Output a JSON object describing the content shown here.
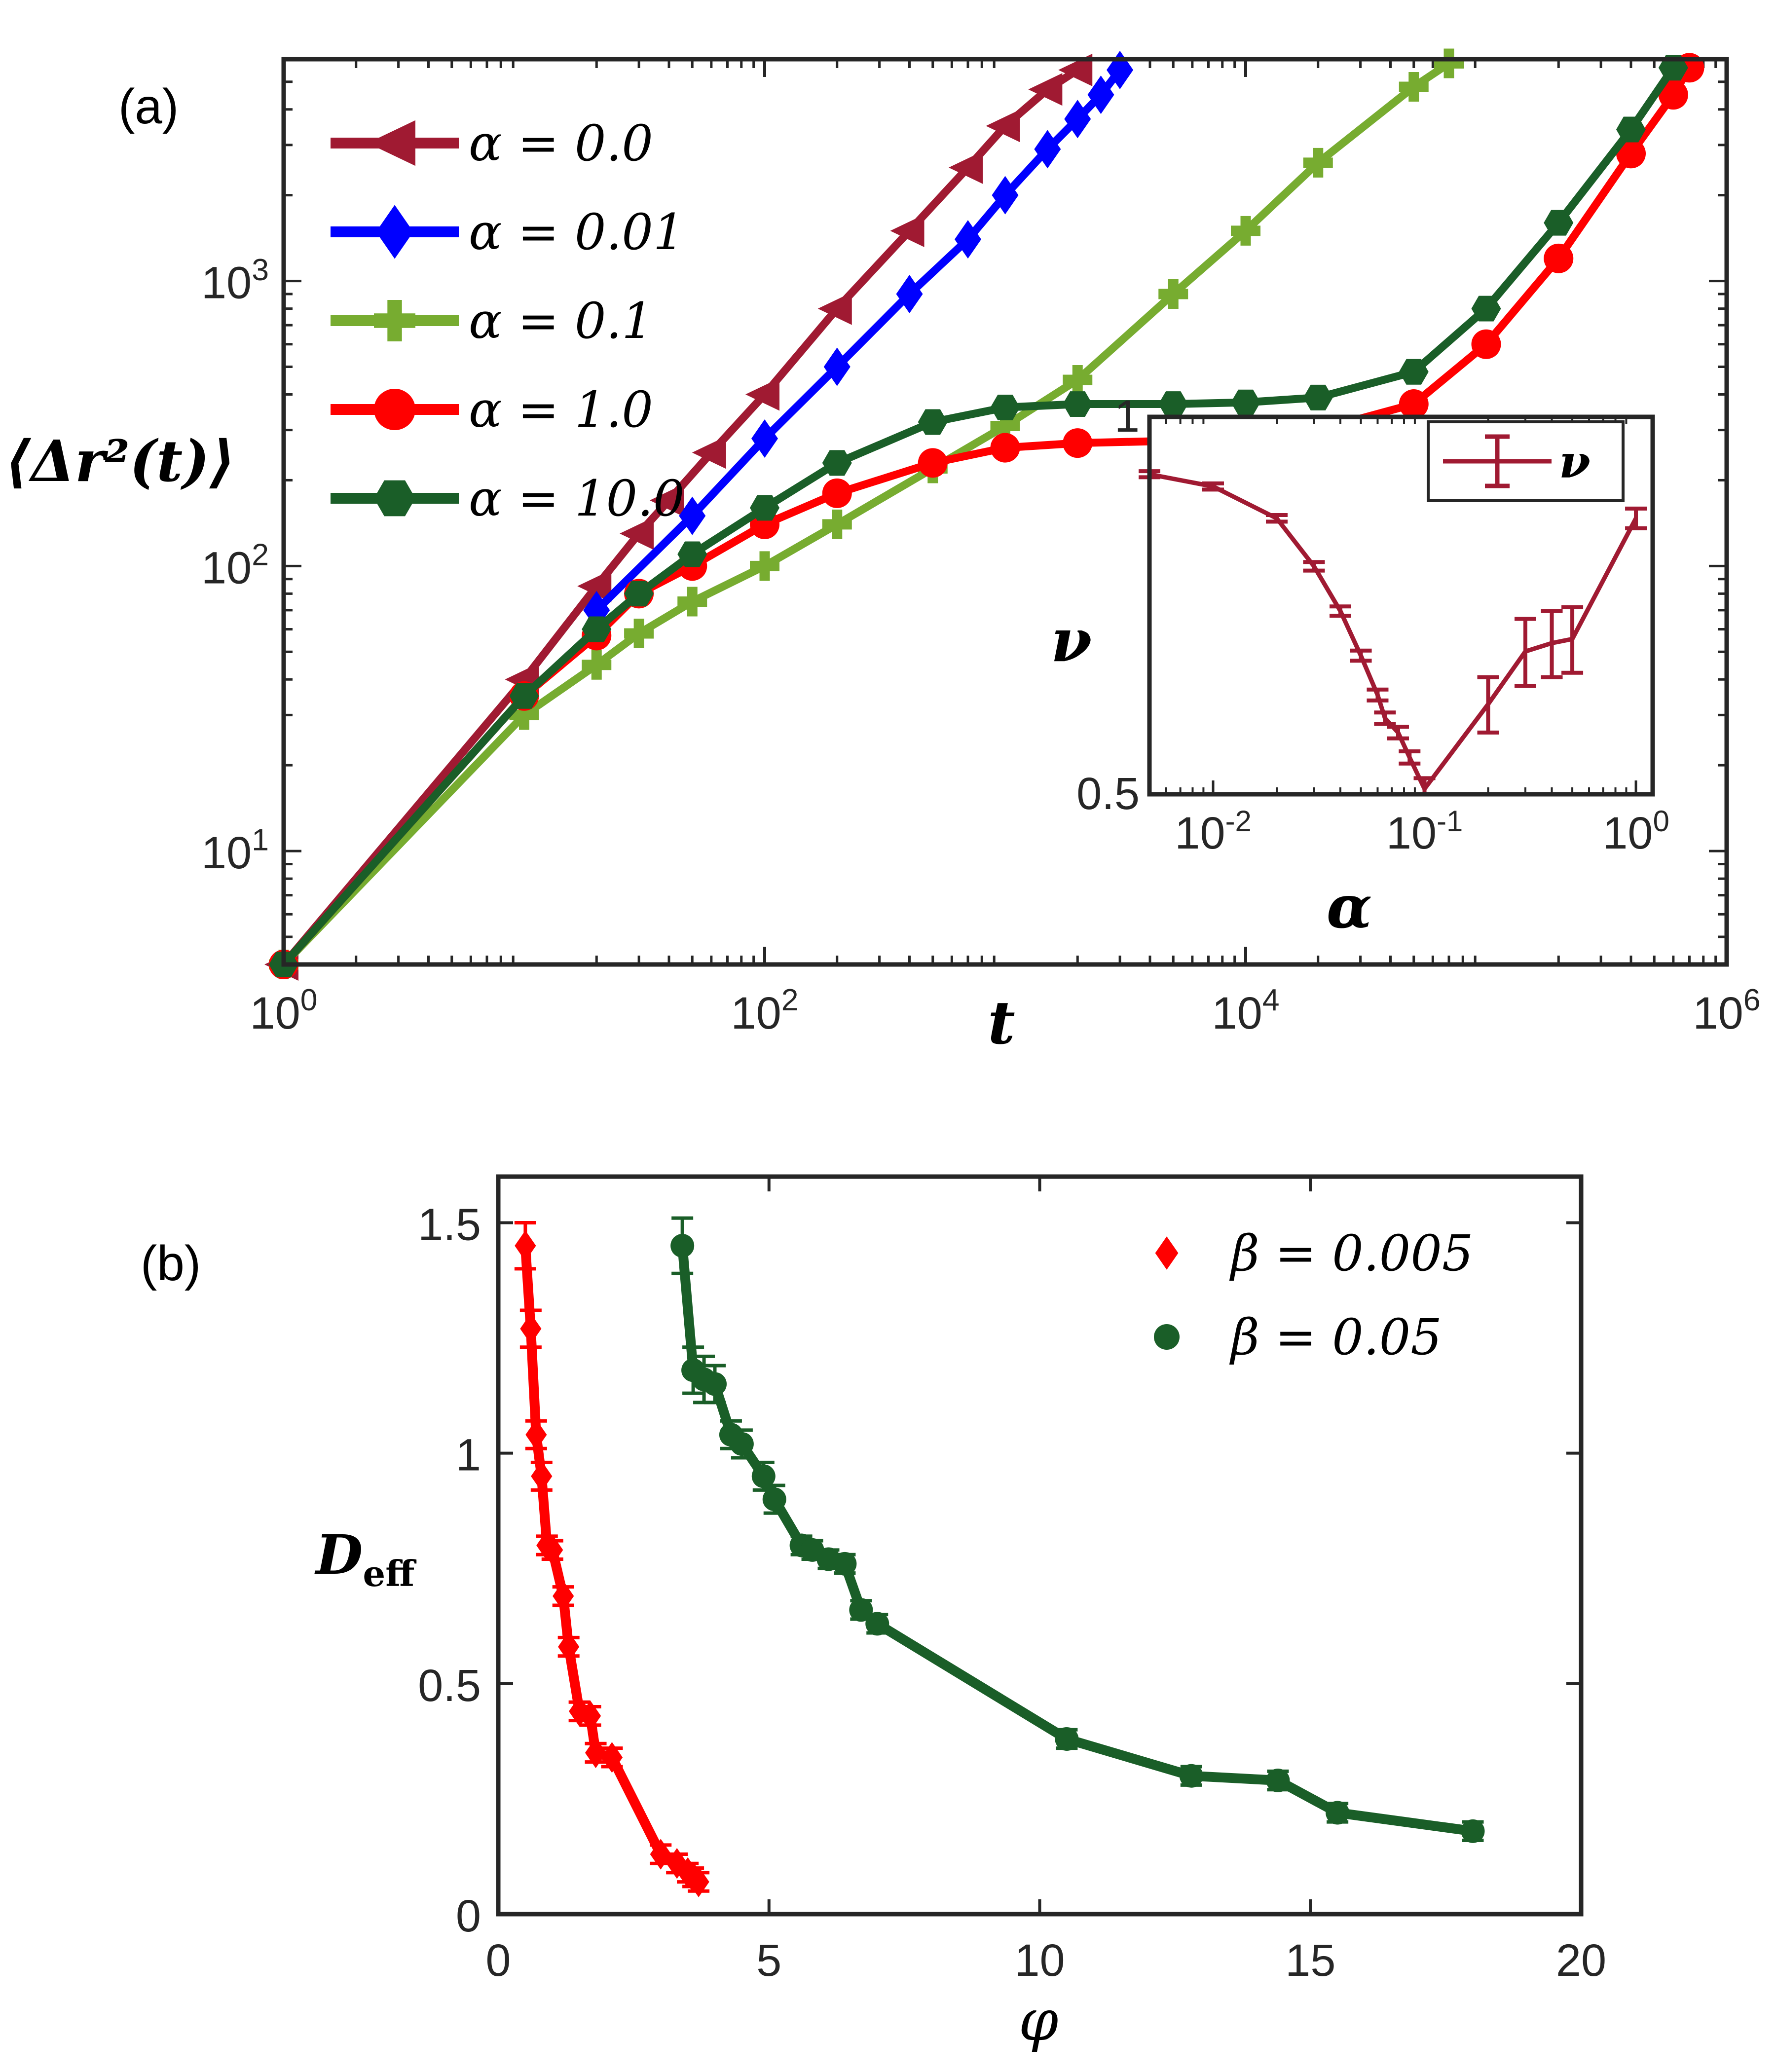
{
  "panel_labels": {
    "a": "(a)",
    "b": "(b)"
  },
  "chart_data": [
    {
      "id": "main",
      "type": "line",
      "xscale": "log",
      "yscale": "log",
      "xlim": [
        1,
        1000000
      ],
      "ylim": [
        4,
        6000
      ],
      "xlabel": "t",
      "ylabel": "⟨Δr²(t)⟩",
      "x_ticks": [
        {
          "v": 1,
          "b": "10",
          "e": "0"
        },
        {
          "v": 100,
          "b": "10",
          "e": "2"
        },
        {
          "v": 10000,
          "b": "10",
          "e": "4"
        },
        {
          "v": 1000000,
          "b": "10",
          "e": "6"
        }
      ],
      "y_ticks": [
        {
          "v": 10,
          "b": "10",
          "e": "1"
        },
        {
          "v": 100,
          "b": "10",
          "e": "2"
        },
        {
          "v": 1000,
          "b": "10",
          "e": "3"
        }
      ],
      "legend": {
        "location": "top-left"
      },
      "series": [
        {
          "name": "α = 0.0",
          "color": "#a01a32",
          "marker": "triangle-left",
          "x": [
            1,
            10,
            20,
            30,
            40,
            60,
            100,
            200,
            400,
            700,
            1000,
            1500,
            2000
          ],
          "y": [
            4,
            40,
            85,
            130,
            170,
            250,
            400,
            800,
            1500,
            2500,
            3500,
            4700,
            5500
          ]
        },
        {
          "name": "α = 0.01",
          "color": "#0000ff",
          "marker": "diamond",
          "x": [
            20,
            50,
            100,
            200,
            400,
            700,
            1000,
            1500,
            2000,
            2500,
            3000
          ],
          "y": [
            70,
            150,
            280,
            500,
            900,
            1400,
            2000,
            2900,
            3700,
            4500,
            5500
          ]
        },
        {
          "name": "α = 0.1",
          "color": "#77ac30",
          "marker": "plus",
          "x": [
            1,
            10,
            20,
            30,
            50,
            100,
            200,
            500,
            1000,
            2000,
            5000,
            10000,
            20000,
            50000,
            70000
          ],
          "y": [
            4,
            30,
            45,
            58,
            75,
            100,
            140,
            220,
            310,
            450,
            900,
            1500,
            2600,
            4800,
            5800
          ]
        },
        {
          "name": "α = 1.0",
          "color": "#ff0000",
          "marker": "circle",
          "x": [
            1,
            10,
            20,
            30,
            50,
            100,
            200,
            500,
            1000,
            2000,
            5000,
            10000,
            20000,
            50000,
            100000,
            200000,
            400000,
            600000,
            700000
          ],
          "y": [
            4,
            35,
            57,
            80,
            100,
            140,
            180,
            230,
            260,
            270,
            275,
            285,
            300,
            370,
            600,
            1200,
            2800,
            4500,
            5600
          ]
        },
        {
          "name": "α = 10.0",
          "color": "#1a5e28",
          "marker": "hexagon",
          "x": [
            1,
            10,
            20,
            30,
            50,
            100,
            200,
            500,
            1000,
            2000,
            5000,
            10000,
            20000,
            50000,
            100000,
            200000,
            400000,
            600000
          ],
          "y": [
            4,
            35,
            60,
            80,
            110,
            160,
            230,
            320,
            360,
            370,
            370,
            375,
            390,
            480,
            800,
            1600,
            3400,
            5600
          ]
        }
      ]
    },
    {
      "id": "inset",
      "type": "line",
      "xscale": "log",
      "yscale": "log",
      "xlim": [
        0.005,
        1.2
      ],
      "ylim": [
        0.5,
        1.0
      ],
      "xlabel": "α",
      "ylabel": "ν",
      "x_ticks": [
        {
          "v": 0.01,
          "b": "10",
          "e": "-2"
        },
        {
          "v": 0.1,
          "b": "10",
          "e": "-1"
        },
        {
          "v": 1,
          "b": "10",
          "e": "0"
        }
      ],
      "y_ticks": [
        {
          "v": 0.5,
          "t": "0.5"
        },
        {
          "v": 1.0,
          "t": "1"
        }
      ],
      "legend": {
        "location": "top-right"
      },
      "series": [
        {
          "name": "ν",
          "color": "#a01a32",
          "marker": "errorbar",
          "x": [
            0.005,
            0.01,
            0.02,
            0.03,
            0.04,
            0.05,
            0.06,
            0.065,
            0.075,
            0.085,
            0.1,
            0.2,
            0.3,
            0.4,
            0.5,
            1.0
          ],
          "y": [
            0.9,
            0.88,
            0.83,
            0.76,
            0.7,
            0.645,
            0.6,
            0.575,
            0.56,
            0.535,
            0.505,
            0.59,
            0.65,
            0.66,
            0.665,
            0.83
          ],
          "err": [
            0.005,
            0.005,
            0.005,
            0.006,
            0.006,
            0.006,
            0.006,
            0.006,
            0.006,
            0.006,
            0.01,
            0.03,
            0.04,
            0.04,
            0.04,
            0.015
          ]
        }
      ]
    },
    {
      "id": "panel_b",
      "type": "scatter",
      "xlim": [
        0,
        20
      ],
      "ylim": [
        0,
        1.6
      ],
      "xlabel": "φ",
      "ylabel": "D",
      "ylabel_sub": "eff",
      "x_ticks": [
        {
          "v": 0,
          "t": "0"
        },
        {
          "v": 5,
          "t": "5"
        },
        {
          "v": 10,
          "t": "10"
        },
        {
          "v": 15,
          "t": "15"
        },
        {
          "v": 20,
          "t": "20"
        }
      ],
      "y_ticks": [
        {
          "v": 0,
          "t": "0"
        },
        {
          "v": 0.5,
          "t": "0.5"
        },
        {
          "v": 1,
          "t": "1"
        },
        {
          "v": 1.5,
          "t": "1.5"
        }
      ],
      "legend": {
        "location": "top-right"
      },
      "series": [
        {
          "name": "β = 0.005",
          "color": "#ff0000",
          "marker": "diamond",
          "x": [
            0.5,
            0.6,
            0.7,
            0.8,
            0.9,
            1.0,
            1.2,
            1.3,
            1.5,
            1.7,
            1.8,
            2.1,
            3.0,
            3.3,
            3.5,
            3.6,
            3.7
          ],
          "y": [
            1.45,
            1.27,
            1.04,
            0.95,
            0.8,
            0.79,
            0.69,
            0.58,
            0.44,
            0.43,
            0.35,
            0.34,
            0.13,
            0.11,
            0.09,
            0.08,
            0.07
          ],
          "err": [
            0.05,
            0.04,
            0.03,
            0.03,
            0.02,
            0.02,
            0.02,
            0.02,
            0.02,
            0.02,
            0.02,
            0.02,
            0.02,
            0.02,
            0.02,
            0.02,
            0.02
          ]
        },
        {
          "name": "β = 0.05",
          "color": "#1a5e28",
          "marker": "circle",
          "x": [
            3.4,
            3.6,
            3.8,
            4.0,
            4.3,
            4.5,
            4.9,
            5.1,
            5.6,
            5.8,
            6.1,
            6.4,
            6.7,
            7.0,
            10.5,
            12.8,
            14.4,
            15.5,
            18.0
          ],
          "y": [
            1.45,
            1.18,
            1.16,
            1.15,
            1.04,
            1.02,
            0.95,
            0.9,
            0.8,
            0.79,
            0.77,
            0.76,
            0.66,
            0.63,
            0.38,
            0.3,
            0.29,
            0.22,
            0.18
          ],
          "err": [
            0.06,
            0.05,
            0.05,
            0.04,
            0.03,
            0.03,
            0.03,
            0.03,
            0.02,
            0.02,
            0.02,
            0.02,
            0.02,
            0.02,
            0.02,
            0.02,
            0.02,
            0.02,
            0.02
          ]
        }
      ]
    }
  ]
}
